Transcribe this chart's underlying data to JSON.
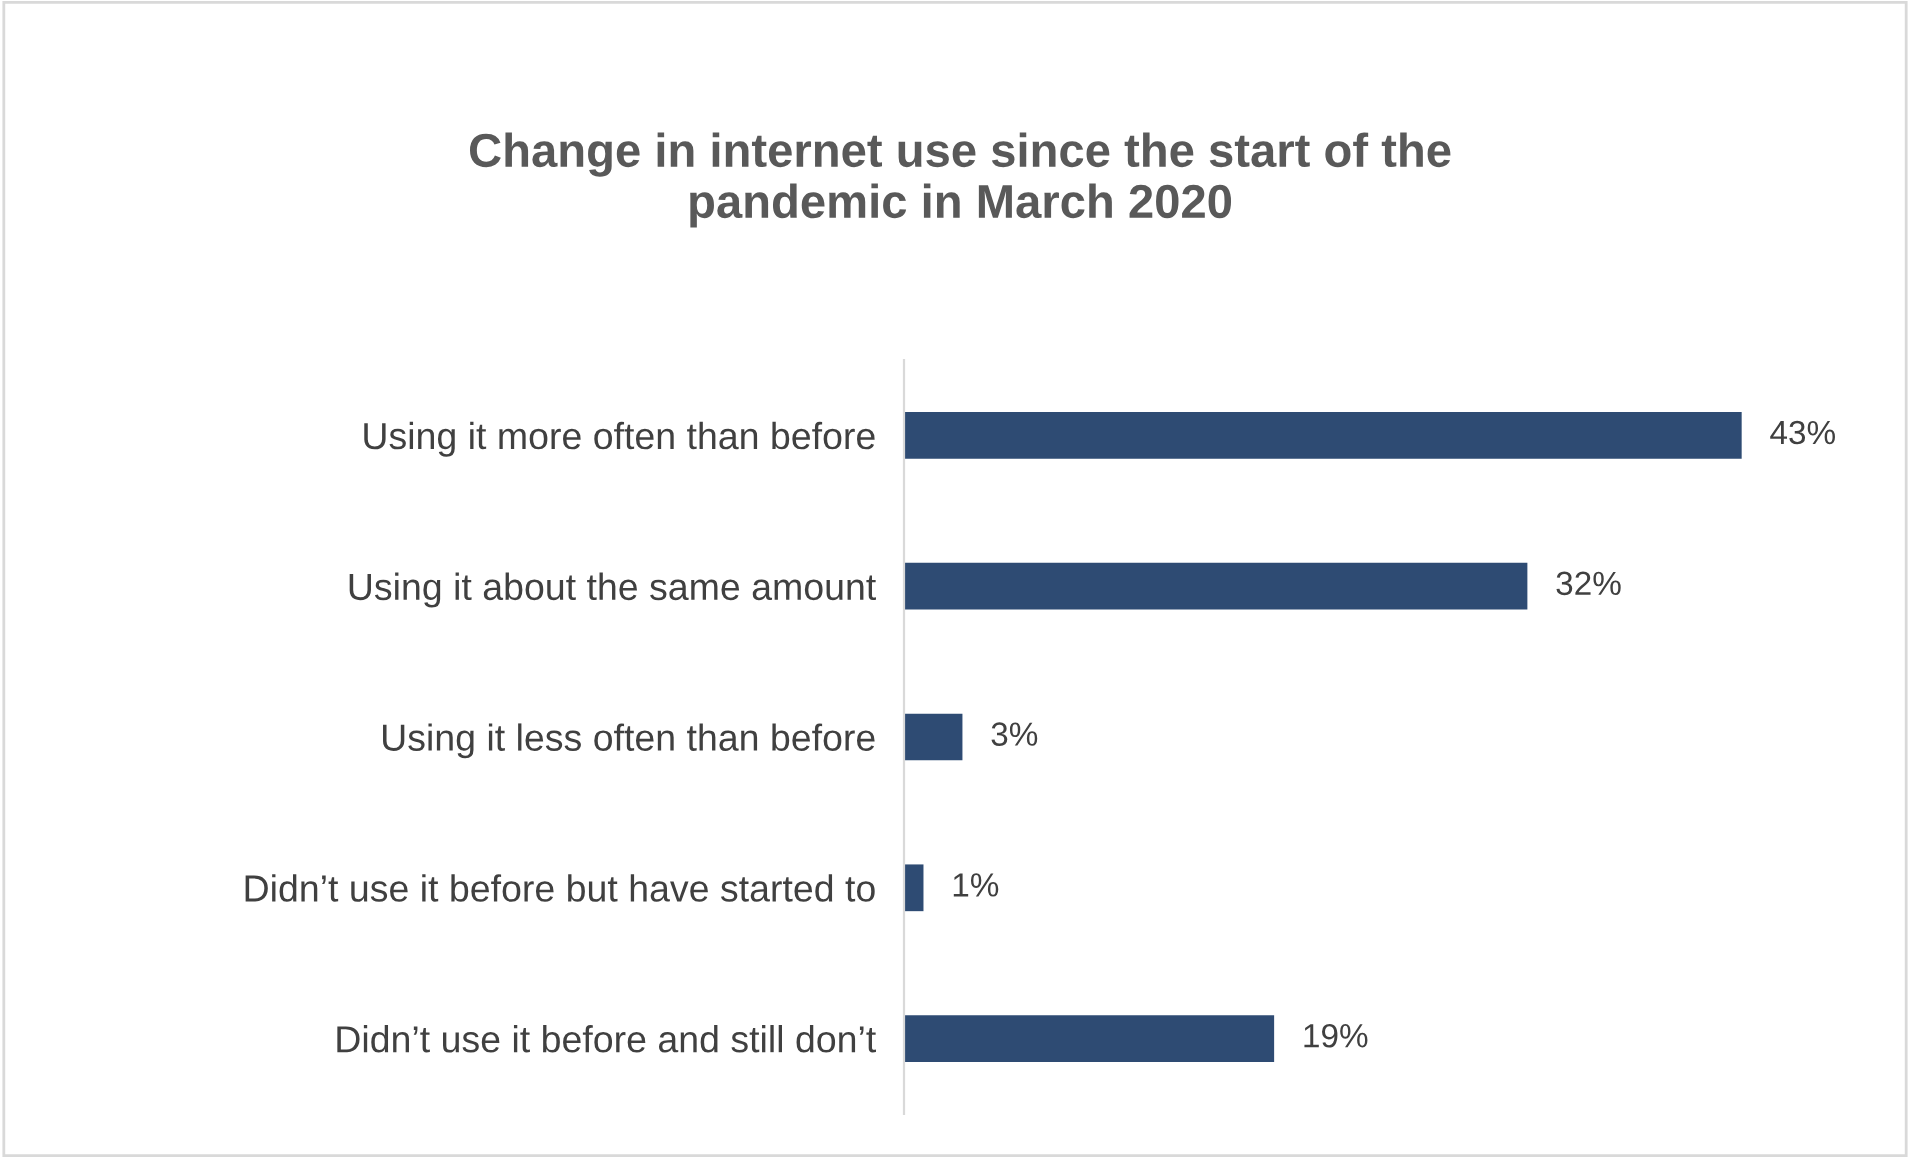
{
  "chart_data": {
    "type": "bar",
    "orientation": "horizontal",
    "title": "Change in internet use since the start of the\npandemic in March 2020",
    "categories": [
      "Using it more often than before",
      "Using it about the same amount",
      "Using it less often than before",
      "Didn’t use it before but have started to",
      "Didn’t use it before and still don’t"
    ],
    "values": [
      43,
      32,
      3,
      1,
      19
    ],
    "value_labels": [
      "43%",
      "32%",
      "3%",
      "1%",
      "19%"
    ],
    "color": "#2e4b73",
    "tick_labels": "y"
  }
}
